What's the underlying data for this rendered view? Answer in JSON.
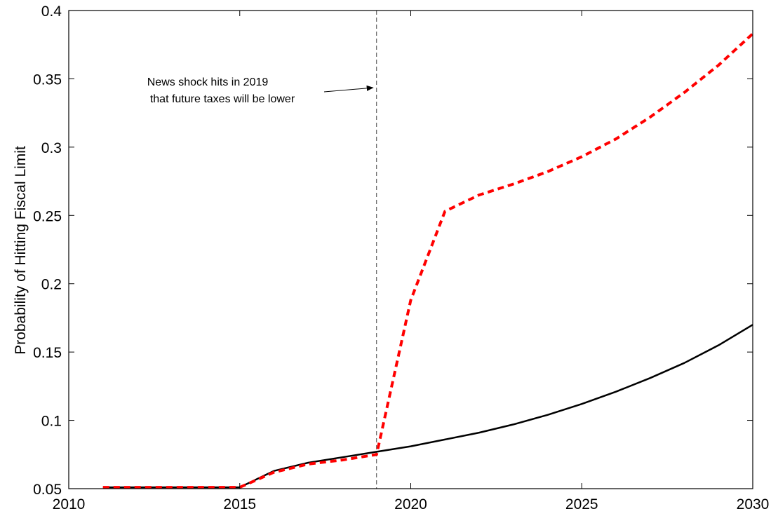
{
  "chart_data": {
    "type": "line",
    "title": "",
    "xlabel": "",
    "ylabel": "Probability of Hitting Fiscal Limit",
    "xlim": [
      2010,
      2030
    ],
    "ylim": [
      0.05,
      0.4
    ],
    "xticks": [
      2010,
      2015,
      2020,
      2025,
      2030
    ],
    "xtick_labels": [
      "2010",
      "2015",
      "2020",
      "2025",
      "2030"
    ],
    "yticks": [
      0.05,
      0.1,
      0.15,
      0.2,
      0.25,
      0.3,
      0.35,
      0.4
    ],
    "ytick_labels": [
      "0.05",
      "0.1",
      "0.15",
      "0.2",
      "0.25",
      "0.3",
      "0.35",
      "0.4"
    ],
    "grid": false,
    "series": [
      {
        "color": "#000000",
        "style": "solid",
        "x": [
          2011,
          2012,
          2013,
          2014,
          2015,
          2016,
          2017,
          2018,
          2019,
          2020,
          2021,
          2022,
          2023,
          2024,
          2025,
          2026,
          2027,
          2028,
          2029,
          2030
        ],
        "y": [
          0.051,
          0.051,
          0.051,
          0.051,
          0.051,
          0.063,
          0.069,
          0.073,
          0.077,
          0.081,
          0.086,
          0.091,
          0.097,
          0.104,
          0.112,
          0.121,
          0.131,
          0.142,
          0.155,
          0.17
        ]
      },
      {
        "color": "#ff0000",
        "style": "dashed",
        "x": [
          2011,
          2012,
          2013,
          2014,
          2015,
          2016,
          2017,
          2018,
          2019,
          2020,
          2021,
          2022,
          2023,
          2024,
          2025,
          2026,
          2027,
          2028,
          2029,
          2030
        ],
        "y": [
          0.051,
          0.051,
          0.051,
          0.051,
          0.051,
          0.062,
          0.068,
          0.071,
          0.075,
          0.188,
          0.253,
          0.265,
          0.273,
          0.282,
          0.293,
          0.306,
          0.322,
          0.34,
          0.36,
          0.383
        ]
      }
    ],
    "vline": {
      "x": 2019,
      "style": "dashed",
      "color": "#444444"
    },
    "annotation": {
      "lines": [
        "News shock hits in 2019",
        "that future taxes will be lower"
      ],
      "points_to_x": 2019,
      "points_to_y": 0.3435
    }
  }
}
